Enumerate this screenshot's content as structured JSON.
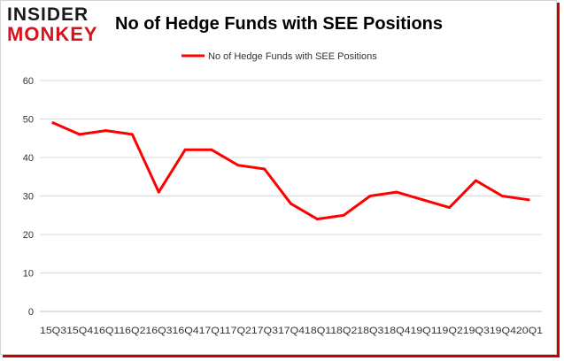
{
  "logo": {
    "line1": "INSIDER",
    "line2": "MONKEY"
  },
  "colors": {
    "series": "#ff0000",
    "grid": "#d9d9d9",
    "logo_red": "#d8121a",
    "frame_shadow": "#cc0000"
  },
  "chart_data": {
    "type": "line",
    "title": "No of Hedge Funds with SEE Positions",
    "xlabel": "",
    "ylabel": "",
    "ylim": [
      0,
      60
    ],
    "yticks": [
      0,
      10,
      20,
      30,
      40,
      50,
      60
    ],
    "grid": true,
    "legend_position": "top",
    "x_axis_text": "15Q315Q416Q116Q216Q316Q417Q117Q217Q317Q418Q118Q218Q318Q419Q119Q219Q319Q420Q1",
    "categories": [
      "15Q3",
      "15Q4",
      "16Q1",
      "16Q2",
      "16Q3",
      "16Q4",
      "17Q1",
      "17Q2",
      "17Q3",
      "17Q4",
      "18Q1",
      "18Q2",
      "18Q3",
      "18Q4",
      "19Q1",
      "19Q2",
      "19Q3",
      "19Q4",
      "20Q1"
    ],
    "series": [
      {
        "name": "No of Hedge Funds with SEE Positions",
        "values": [
          49,
          46,
          47,
          46,
          31,
          42,
          42,
          38,
          37,
          28,
          24,
          25,
          30,
          31,
          29,
          27,
          34,
          30,
          29
        ]
      }
    ]
  }
}
